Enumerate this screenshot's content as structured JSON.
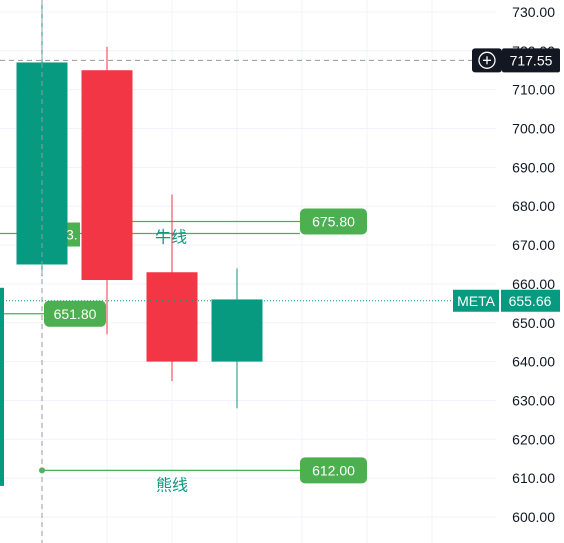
{
  "symbol": "META",
  "last_price": "655.66",
  "crosshair_price": "717.55",
  "colors": {
    "up": "#089981",
    "down": "#f23645",
    "level_line": "#4caf50",
    "crosshair": "#9598a1",
    "axis_text": "#131722",
    "price_tag_dark": "#131722"
  },
  "icons": {
    "crosshair_add": "plus-circle-icon"
  },
  "chart_data": {
    "type": "candlestick",
    "y_axis": {
      "position": "right",
      "ticks": [
        "600.00",
        "610.00",
        "620.00",
        "630.00",
        "640.00",
        "650.00",
        "660.00",
        "670.00",
        "680.00",
        "690.00",
        "700.00",
        "710.00",
        "720.00",
        "730.00"
      ],
      "range": [
        597,
        733
      ]
    },
    "grid": true,
    "candles": [
      {
        "open": 665,
        "high": 733,
        "low": 662,
        "close": 717,
        "color": "up"
      },
      {
        "open": 715,
        "high": 721,
        "low": 647,
        "close": 661,
        "color": "down"
      },
      {
        "open": 663,
        "high": 683,
        "low": 635,
        "close": 640,
        "color": "down"
      },
      {
        "open": 640,
        "high": 664,
        "low": 628,
        "close": 656,
        "color": "up"
      }
    ],
    "partial_candle_left": {
      "low": 608,
      "high": 659,
      "color": "up"
    },
    "levels": [
      {
        "price": 675.8,
        "label": "675.80",
        "name": "牛线",
        "partial_label": "3."
      },
      {
        "price": 651.8,
        "label": "651.80"
      },
      {
        "price": 612.0,
        "label": "612.00",
        "name": "熊线"
      }
    ]
  }
}
